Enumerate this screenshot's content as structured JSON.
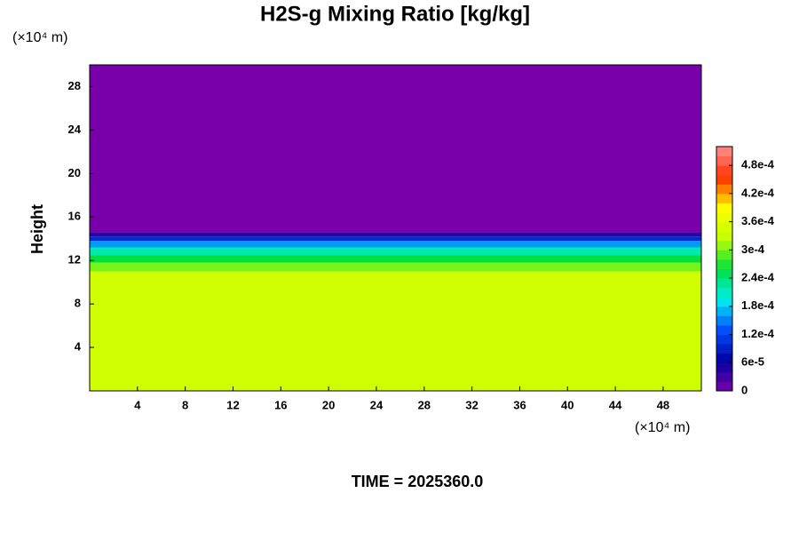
{
  "chart_data": {
    "type": "heatmap",
    "title": "H2S-g Mixing Ratio [kg/kg]",
    "y_label": "Height",
    "x_unit_label": "(×10⁴ m)",
    "y_unit_label": "(×10⁴ m)",
    "footer": "TIME = 2025360.0",
    "xlim": [
      0,
      51.2
    ],
    "xticks": [
      4,
      8,
      12,
      16,
      20,
      24,
      28,
      32,
      36,
      40,
      44,
      48
    ],
    "ylim": [
      0,
      30
    ],
    "yticks": [
      4,
      8,
      12,
      16,
      20,
      24,
      28
    ],
    "y_bins": [
      0,
      11,
      11.8,
      12.5,
      13.2,
      13.8,
      14.2,
      14.6,
      30
    ],
    "values": [
      0.00034,
      0.0003,
      0.00026,
      0.00022,
      0.00016,
      0.0001,
      4e-05,
      0
    ],
    "clim": [
      0,
      0.00052
    ],
    "colorbar_ticks": [
      0,
      {
        "value": 6e-05,
        "label": "6e-5"
      },
      {
        "value": 0.00012,
        "label": "1.2e-4"
      },
      {
        "value": 0.00018,
        "label": "1.8e-4"
      },
      {
        "value": 0.00024,
        "label": "2.4e-4"
      },
      {
        "value": 0.0003,
        "label": "3e-4"
      },
      {
        "value": 0.00036,
        "label": "3.6e-4"
      },
      {
        "value": 0.00042,
        "label": "4.2e-4"
      },
      {
        "value": 0.00048,
        "label": "4.8e-4"
      }
    ],
    "colormap": [
      "#7800a8",
      "#0000a0",
      "#0050ff",
      "#00f0f0",
      "#00e040",
      "#c0ff00",
      "#ffff00",
      "#ff3000",
      "#ff9090"
    ]
  }
}
